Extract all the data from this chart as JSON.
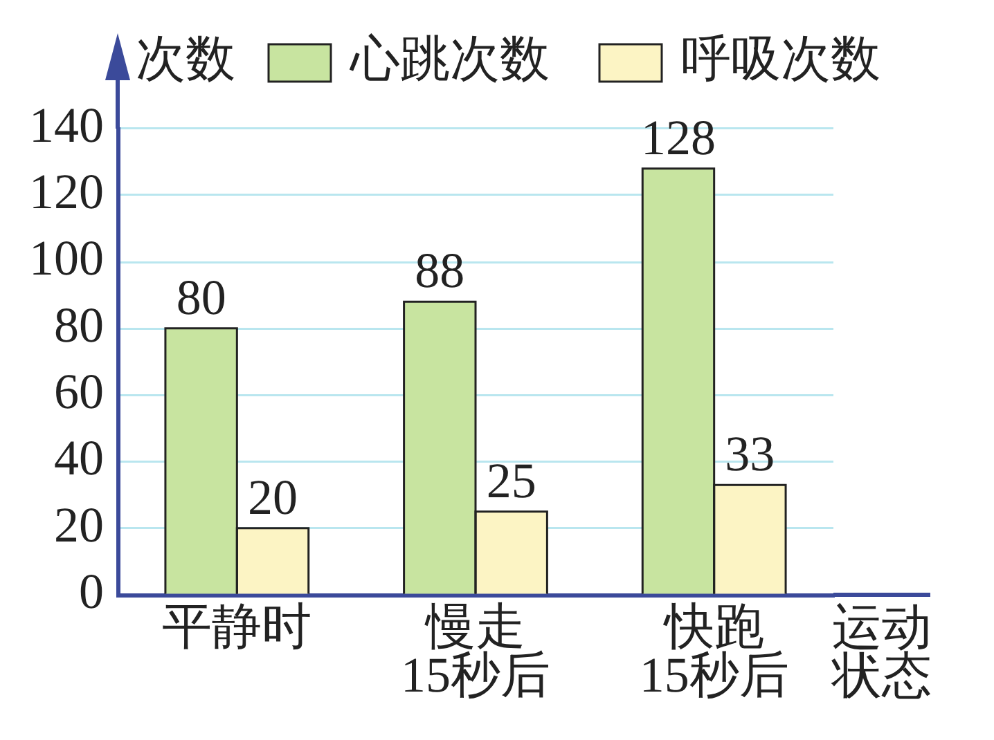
{
  "chart_data": {
    "type": "bar",
    "ylabel": "次数",
    "xlabel": "运动状态",
    "categories": [
      "平静时",
      "慢走\n15秒后",
      "快跑\n15秒后"
    ],
    "series": [
      {
        "name": "心跳次数",
        "color": "#c8e4a0",
        "values": [
          80,
          88,
          128
        ]
      },
      {
        "name": "呼吸次数",
        "color": "#fcf4c4",
        "values": [
          20,
          25,
          33
        ]
      }
    ],
    "ylim": [
      0,
      140
    ],
    "yticks": [
      0,
      20,
      40,
      60,
      80,
      100,
      120,
      140
    ],
    "grid": "y",
    "legend": "top",
    "data_labels": true
  }
}
